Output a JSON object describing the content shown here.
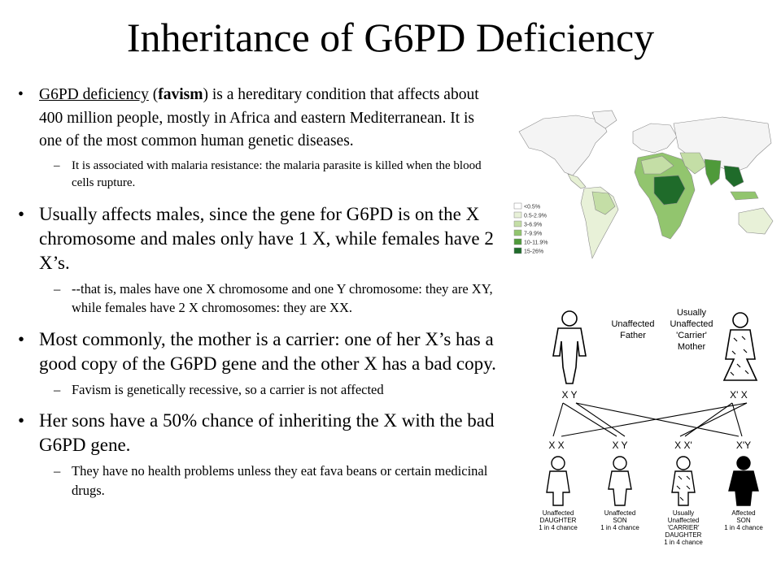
{
  "slide": {
    "title": "Inheritance of G6PD Deficiency",
    "b1": {
      "link": "G6PD deficiency",
      "t1": " (",
      "bold": "favism",
      "t2": ") is a hereditary condition that affects about 400 million people, mostly in Africa and eastern Mediterranean.  It is one of the most common human genetic diseases.",
      "sub": "It is associated with malaria resistance: the malaria parasite is killed when the blood cells rupture."
    },
    "b2": {
      "text": "Usually affects males, since the gene for G6PD is on the X chromosome and males only have 1 X, while females have 2 X’s.",
      "sub": "--that is, males have one X chromosome and one Y chromosome: they are XY, while females have 2 X chromosomes: they are XX."
    },
    "b3": {
      "text": "Most commonly, the mother is a carrier: one of her X’s has a good copy of the G6PD gene and the other X has a bad copy.",
      "sub": "Favism is genetically recessive, so a carrier is not affected"
    },
    "b4": {
      "text": "Her sons have a 50% chance of inheriting the X with the bad G6PD gene.",
      "sub": "They have no health problems unless they eat fava beans or certain medicinal drugs."
    },
    "bullet_glyph": "•",
    "dash_glyph": "–"
  },
  "map": {
    "legend": [
      "<0.5%",
      "0.5-2.9%",
      "3-6.9%",
      "7-9.9%",
      "10-11.9%",
      "15-26%"
    ],
    "legend_colors": [
      "#ffffff",
      "#e8f1d8",
      "#c4dea6",
      "#92c56e",
      "#4f9a3a",
      "#1f6b2a"
    ]
  },
  "pedigree": {
    "father_label": [
      "Unaffected",
      "Father"
    ],
    "mother_label": [
      "Usually",
      "Unaffected",
      "'Carrier'",
      "Mother"
    ],
    "father_genes": "X  Y",
    "mother_genes": "X'  X",
    "children_genes": [
      "X X",
      "X Y",
      "X X'",
      "X'Y"
    ],
    "children": [
      {
        "lines": [
          "Unaffected",
          "DAUGHTER",
          "1 in 4 chance"
        ]
      },
      {
        "lines": [
          "Unaffected",
          "SON",
          "1 in 4 chance"
        ]
      },
      {
        "lines": [
          "Usually",
          "Unaffected",
          "'CARRIER'",
          "DAUGHTER",
          "1 in 4 chance"
        ]
      },
      {
        "lines": [
          "Affected",
          "SON",
          "1 in 4 chance"
        ]
      }
    ]
  }
}
